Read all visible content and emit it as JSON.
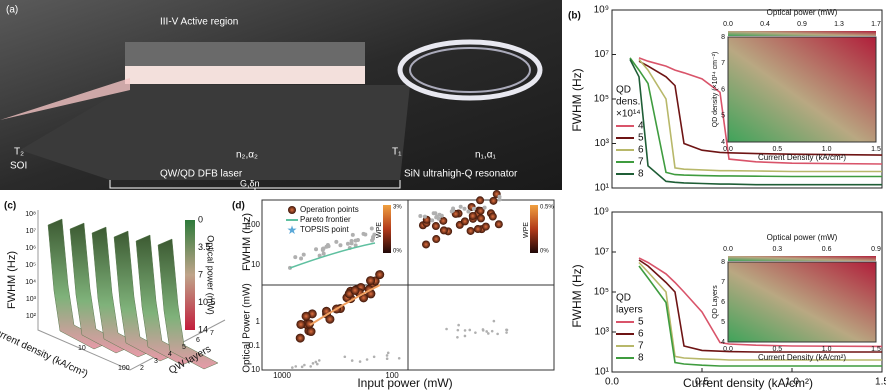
{
  "panel_a": {
    "label": "(a)",
    "active": "III-V Active region",
    "t2": "T₂",
    "soi": "SOI",
    "n2": "n₂,α₂",
    "t1": "T₁",
    "n1": "n₁,α₁",
    "laser": "QW/QD DFB laser",
    "resonator": "SiN ultrahigh-Q resonator",
    "gain": "G,δn"
  },
  "panel_b": {
    "label": "(b)",
    "ylabel": "FWHM (Hz)",
    "xlabel": "Current density (kA/cm²)"
  },
  "chart_data": [
    {
      "type": "line",
      "ylog": true,
      "x": [
        0.1,
        0.15,
        0.2,
        0.3,
        0.35,
        0.4,
        0.5,
        0.6,
        0.65,
        0.8,
        1.0,
        1.5
      ],
      "xlim": [
        0,
        1.5
      ],
      "ylim": [
        10,
        1000000000
      ],
      "yticks": [
        {
          "value": 10,
          "label": "10¹"
        },
        {
          "value": 1000,
          "label": "10³"
        },
        {
          "value": 100000,
          "label": "10⁵"
        },
        {
          "value": 10000000,
          "label": "10⁷"
        },
        {
          "value": 1000000000,
          "label": "10⁹"
        }
      ],
      "legend_title": [
        "QD",
        "dens.",
        "×10¹⁴"
      ],
      "series": [
        {
          "name": "4",
          "color": "#d9546a",
          "values": [
            null,
            7000000,
            5000000,
            3000000,
            2000000,
            1500000,
            800000,
            200000,
            200,
            150,
            130,
            120
          ]
        },
        {
          "name": "5",
          "color": "#6e1414",
          "values": [
            null,
            5000000,
            3000000,
            1000000,
            400000,
            1000,
            500,
            400,
            380,
            350,
            330,
            300
          ]
        },
        {
          "name": "6",
          "color": "#b8b86a",
          "values": [
            null,
            6000000,
            2000000,
            100000,
            80,
            70,
            65,
            60,
            60,
            58,
            55,
            55
          ]
        },
        {
          "name": "7",
          "color": "#3f9c3f",
          "values": [
            7000000,
            2000000,
            500000,
            50,
            40,
            38,
            36,
            35,
            35,
            34,
            33,
            33
          ]
        },
        {
          "name": "8",
          "color": "#1f5e36",
          "values": [
            6000000,
            1000000,
            100,
            20,
            18,
            17,
            16,
            15,
            15,
            14,
            14,
            14
          ]
        }
      ],
      "inset": {
        "title": "Optical power (mW)",
        "top_ticks": [
          "0.0",
          "0.4",
          "0.9",
          "1.3",
          "1.7"
        ],
        "ylabel": "QD density (×10¹⁴ cm⁻²)",
        "yticks": [
          "4",
          "5",
          "6",
          "7",
          "8"
        ],
        "xlabel": "Current Density (kA/cm²)",
        "xticks": [
          "0.0",
          "0.5",
          "1.0",
          "1.5"
        ]
      }
    },
    {
      "type": "line",
      "ylog": true,
      "x": [
        0.1,
        0.15,
        0.2,
        0.3,
        0.35,
        0.4,
        0.5,
        0.6,
        0.65,
        0.8,
        1.0,
        1.5
      ],
      "xlim": [
        0,
        1.5
      ],
      "ylim": [
        10,
        1000000000
      ],
      "xticks": [
        {
          "value": 0,
          "label": "0.0"
        },
        0.5,
        {
          "value": 1,
          "label": "1.0"
        },
        1.5
      ],
      "yticks": [
        {
          "value": 10,
          "label": "10¹"
        },
        {
          "value": 1000,
          "label": "10³"
        },
        {
          "value": 100000,
          "label": "10⁵"
        },
        {
          "value": 10000000,
          "label": "10⁷"
        },
        {
          "value": 1000000000,
          "label": "10⁹"
        }
      ],
      "legend_title": [
        "QD",
        "layers"
      ],
      "series": [
        {
          "name": "5",
          "color": "#d9546a",
          "values": [
            null,
            5000000,
            3000000,
            800000,
            300000,
            100000,
            10000,
            300,
            250,
            220,
            200,
            190
          ]
        },
        {
          "name": "6",
          "color": "#6e1414",
          "values": [
            null,
            4000000,
            2000000,
            300000,
            100000,
            200,
            120,
            110,
            105,
            100,
            100,
            100
          ]
        },
        {
          "name": "7",
          "color": "#b8b86a",
          "values": [
            null,
            3000000,
            1000000,
            100000,
            60,
            50,
            45,
            42,
            40,
            40,
            40,
            40
          ]
        },
        {
          "name": "8",
          "color": "#3f9c3f",
          "values": [
            null,
            2000000,
            500000,
            30000,
            30,
            25,
            22,
            20,
            20,
            20,
            20,
            20
          ]
        }
      ],
      "inset": {
        "title": "Optical power (mW)",
        "top_ticks": [
          "0.0",
          "0.3",
          "0.6",
          "0.9"
        ],
        "ylabel": "QD Layers",
        "yticks": [
          "4",
          "5",
          "6",
          "7",
          "8"
        ],
        "xlabel": "Current Density (kA/cm²)",
        "xticks": [
          "0.0",
          "0.5",
          "1.0",
          "1.5"
        ]
      }
    }
  ],
  "panel_c": {
    "label": "(c)",
    "ylabel": "FWHM (Hz)",
    "yticks": [
      "10⁸",
      "10⁷",
      "10⁶",
      "10⁵",
      "10⁴",
      "10³",
      "10²"
    ],
    "colorbar_title": "Optical power (mW)",
    "colorbar_ticks": [
      "0",
      "3.5",
      "7",
      "10.5",
      "14"
    ],
    "xlabel": "Current density (kA/cm²)",
    "xticks": [
      "10",
      "100"
    ],
    "zlabel": "QW layers",
    "zticks": [
      "2",
      "3",
      "4",
      "5",
      "6",
      "7"
    ]
  },
  "panel_d": {
    "label": "(d)",
    "legend": [
      "Operation points",
      "Pareto frontier",
      "TOPSIS point"
    ],
    "ylabel_top": "FWHM (Hz)",
    "ylabel_bottom": "Optical Power (mW)",
    "xlabel": "Input power (mW)",
    "yticks_top": [
      "100",
      "10"
    ],
    "yticks_bottom": [
      "1",
      "0.1",
      "10"
    ],
    "xticks": [
      "1000",
      "100"
    ],
    "cbar_label": "WPE",
    "cbar1": [
      "3%",
      "0%"
    ],
    "cbar2": [
      "0.5%",
      "0%"
    ]
  }
}
